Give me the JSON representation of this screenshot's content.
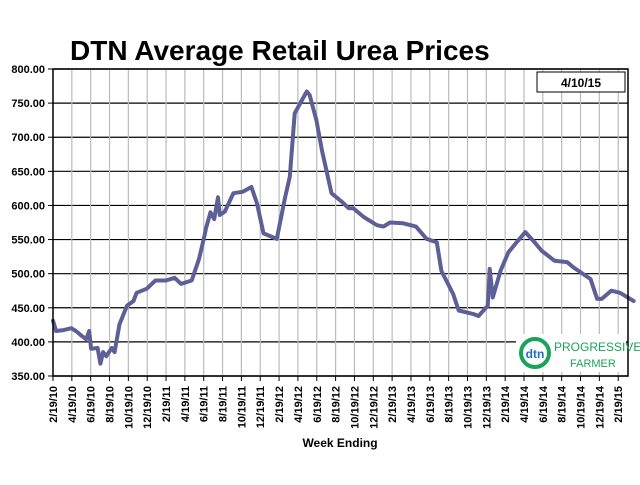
{
  "chart_data": {
    "type": "line",
    "title": "DTN Average Retail Urea Prices",
    "xlabel": "Week Ending",
    "ylabel": "",
    "date_box": "4/10/15",
    "ylim": [
      350,
      800
    ],
    "yticks": [
      "350.00",
      "400.00",
      "450.00",
      "500.00",
      "550.00",
      "600.00",
      "650.00",
      "700.00",
      "750.00",
      "800.00"
    ],
    "xticks": [
      "2/19/10",
      "4/19/10",
      "6/19/10",
      "8/19/10",
      "10/19/10",
      "12/19/10",
      "2/19/11",
      "4/19/11",
      "6/19/11",
      "8/19/11",
      "10/19/11",
      "12/19/11",
      "2/19/12",
      "4/19/12",
      "6/19/12",
      "8/19/12",
      "10/19/12",
      "12/19/12",
      "2/19/13",
      "4/19/13",
      "6/19/13",
      "8/19/13",
      "10/19/13",
      "12/19/13",
      "2/19/14",
      "4/19/14",
      "6/19/14",
      "8/19/14",
      "10/19/14",
      "12/19/14",
      "2/19/15"
    ],
    "grid": true,
    "line_color": "#5d6096",
    "series": [
      {
        "points": [
          [
            "2010-02-19",
            431
          ],
          [
            "2010-03-01",
            416
          ],
          [
            "2010-03-22",
            417
          ],
          [
            "2010-04-19",
            420
          ],
          [
            "2010-05-04",
            416
          ],
          [
            "2010-05-22",
            409
          ],
          [
            "2010-06-06",
            404
          ],
          [
            "2010-06-16",
            416
          ],
          [
            "2010-06-22",
            390
          ],
          [
            "2010-07-13",
            391
          ],
          [
            "2010-07-22",
            368
          ],
          [
            "2010-07-31",
            385
          ],
          [
            "2010-08-10",
            379
          ],
          [
            "2010-08-28",
            391
          ],
          [
            "2010-09-06",
            385
          ],
          [
            "2010-09-22",
            426
          ],
          [
            "2010-10-16",
            453
          ],
          [
            "2010-11-06",
            460
          ],
          [
            "2010-11-16",
            472
          ],
          [
            "2010-12-19",
            478
          ],
          [
            "2011-01-16",
            490
          ],
          [
            "2011-02-19",
            490
          ],
          [
            "2011-03-19",
            494
          ],
          [
            "2011-04-09",
            485
          ],
          [
            "2011-05-13",
            490
          ],
          [
            "2011-06-06",
            522
          ],
          [
            "2011-06-25",
            559
          ],
          [
            "2011-06-28",
            566
          ],
          [
            "2011-07-13",
            590
          ],
          [
            "2011-07-25",
            580
          ],
          [
            "2011-08-06",
            612
          ],
          [
            "2011-08-12",
            586
          ],
          [
            "2011-08-28",
            591
          ],
          [
            "2011-09-25",
            618
          ],
          [
            "2011-10-25",
            620
          ],
          [
            "2011-11-22",
            627
          ],
          [
            "2011-12-10",
            603
          ],
          [
            "2011-12-31",
            559
          ],
          [
            "2012-02-12",
            551
          ],
          [
            "2012-03-10",
            612
          ],
          [
            "2012-03-25",
            642
          ],
          [
            "2012-04-10",
            735
          ],
          [
            "2012-04-28",
            750
          ],
          [
            "2012-05-19",
            767
          ],
          [
            "2012-05-28",
            762
          ],
          [
            "2012-06-19",
            725
          ],
          [
            "2012-07-07",
            681
          ],
          [
            "2012-08-07",
            618
          ],
          [
            "2012-09-10",
            605
          ],
          [
            "2012-10-01",
            596
          ],
          [
            "2012-10-16",
            596
          ],
          [
            "2012-11-19",
            583
          ],
          [
            "2013-01-01",
            571
          ],
          [
            "2013-01-22",
            569
          ],
          [
            "2013-02-12",
            575
          ],
          [
            "2013-03-25",
            574
          ],
          [
            "2013-05-07",
            569
          ],
          [
            "2013-06-10",
            551
          ],
          [
            "2013-07-13",
            546
          ],
          [
            "2013-07-28",
            504
          ],
          [
            "2013-09-04",
            470
          ],
          [
            "2013-09-22",
            446
          ],
          [
            "2013-11-07",
            441
          ],
          [
            "2013-11-25",
            438
          ],
          [
            "2013-12-25",
            453
          ],
          [
            "2013-12-31",
            507
          ],
          [
            "2014-01-10",
            465
          ],
          [
            "2014-02-04",
            504
          ],
          [
            "2014-03-01",
            531
          ],
          [
            "2014-03-28",
            546
          ],
          [
            "2014-04-25",
            561
          ],
          [
            "2014-05-25",
            546
          ],
          [
            "2014-06-16",
            534
          ],
          [
            "2014-07-28",
            519
          ],
          [
            "2014-09-07",
            517
          ],
          [
            "2014-09-28",
            509
          ],
          [
            "2014-11-22",
            492
          ],
          [
            "2014-12-13",
            463
          ],
          [
            "2014-12-28",
            463
          ],
          [
            "2015-01-28",
            475
          ],
          [
            "2015-02-25",
            472
          ],
          [
            "2015-04-10",
            460
          ]
        ]
      }
    ]
  },
  "logo": {
    "mark": "dtn",
    "text": "The Progressive Farmer"
  }
}
